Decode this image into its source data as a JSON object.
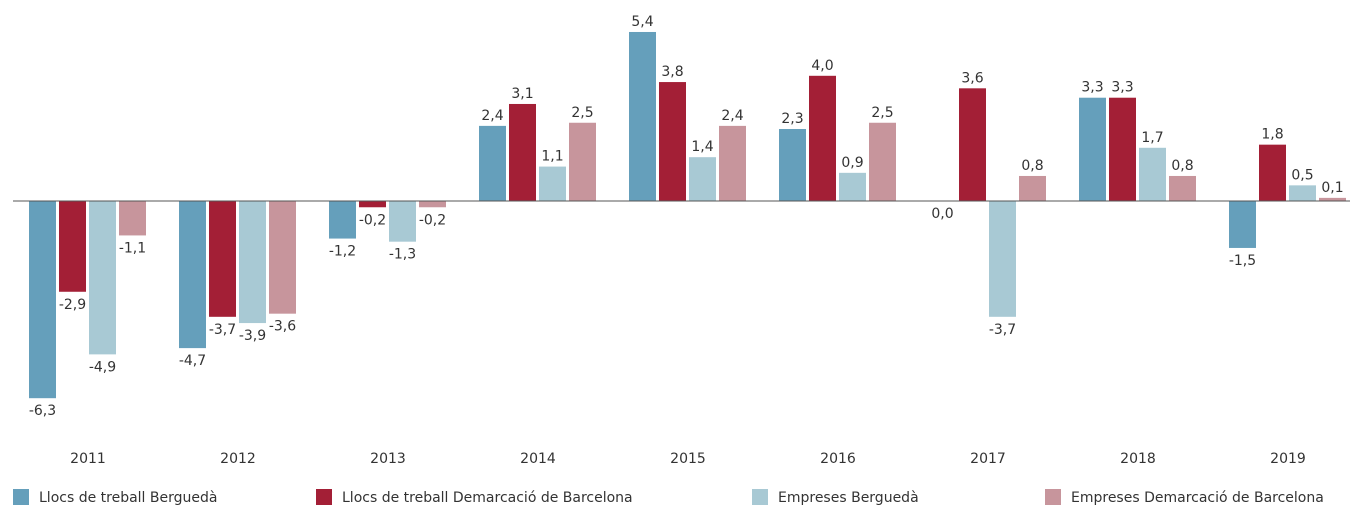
{
  "chart_data": {
    "type": "bar",
    "categories": [
      "2011",
      "2012",
      "2013",
      "2014",
      "2015",
      "2016",
      "2017",
      "2018",
      "2019"
    ],
    "series": [
      {
        "name": "Llocs de treball Berguedà",
        "color": "#659fbb",
        "values": [
          -6.3,
          -4.7,
          -1.2,
          2.4,
          5.4,
          2.3,
          0.0,
          3.3,
          -1.5
        ],
        "value_labels": [
          "-6,3",
          "-4,7",
          "-1,2",
          "2,4",
          "5,4",
          "2,3",
          "0,0",
          "3,3",
          "-1,5"
        ]
      },
      {
        "name": "Llocs de treball Demarcació de Barcelona",
        "color": "#a31f36",
        "values": [
          -2.9,
          -3.7,
          -0.2,
          3.1,
          3.8,
          4.0,
          3.6,
          3.3,
          1.8
        ],
        "value_labels": [
          "-2,9",
          "-3,7",
          "-0,2",
          "3,1",
          "3,8",
          "4,0",
          "3,6",
          "3,3",
          "1,8"
        ]
      },
      {
        "name": "Empreses Berguedà",
        "color": "#a8c9d4",
        "values": [
          -4.9,
          -3.9,
          -1.3,
          1.1,
          1.4,
          0.9,
          -3.7,
          1.7,
          0.5
        ],
        "value_labels": [
          "-4,9",
          "-3,9",
          "-1,3",
          "1,1",
          "1,4",
          "0,9",
          "-3,7",
          "1,7",
          "0,5"
        ]
      },
      {
        "name": "Empreses Demarcació de Barcelona",
        "color": "#c7959c",
        "values": [
          -1.1,
          -3.6,
          -0.2,
          2.5,
          2.4,
          2.5,
          0.8,
          0.8,
          0.1
        ],
        "value_labels": [
          "-1,1",
          "-3,6",
          "-0,2",
          "2,5",
          "2,4",
          "2,5",
          "0,8",
          "0,8",
          "0,1"
        ]
      }
    ]
  }
}
